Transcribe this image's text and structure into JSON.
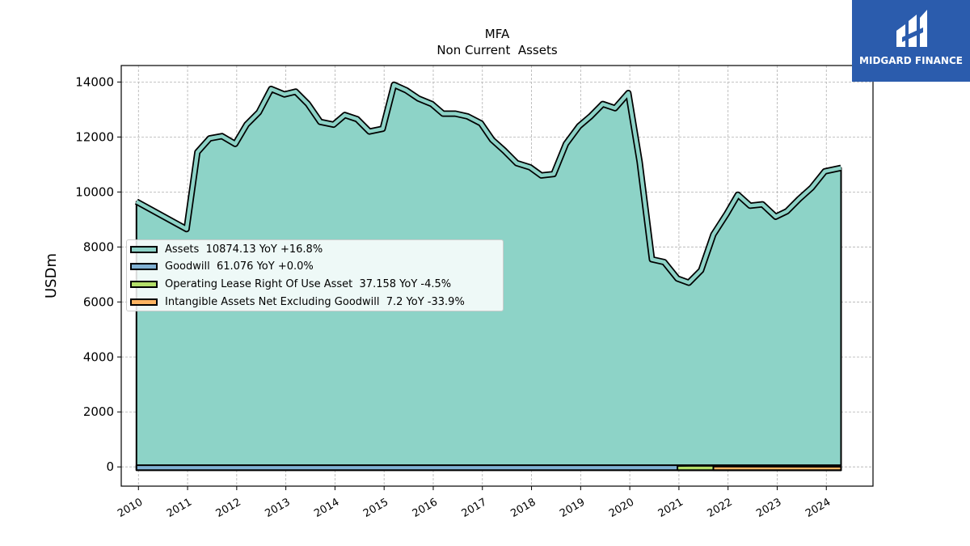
{
  "chart_data": {
    "type": "area",
    "title": "MFA",
    "subtitle": "Non Current  Assets",
    "ylabel": "USDm",
    "xlabel": "",
    "xlim": [
      2009.65,
      2024.95
    ],
    "ylim": [
      -700,
      14600
    ],
    "yticks": [
      0,
      2000,
      4000,
      6000,
      8000,
      10000,
      12000,
      14000
    ],
    "xticks": [
      "2010",
      "2011",
      "2012",
      "2013",
      "2014",
      "2015",
      "2016",
      "2017",
      "2018",
      "2019",
      "2020",
      "2021",
      "2022",
      "2023",
      "2024"
    ],
    "grid": true,
    "legend_position": "center-left",
    "series": [
      {
        "name": "Assets",
        "legend_label": "Assets  10874.13 YoY +16.8%",
        "color": "#8dd3c7",
        "x": [
          2009.96,
          2010.98,
          2011.2,
          2011.45,
          2011.7,
          2011.97,
          2012.2,
          2012.45,
          2012.7,
          2012.97,
          2013.2,
          2013.45,
          2013.7,
          2013.97,
          2014.2,
          2014.45,
          2014.7,
          2014.97,
          2015.2,
          2015.45,
          2015.7,
          2015.97,
          2016.2,
          2016.45,
          2016.7,
          2016.97,
          2017.2,
          2017.45,
          2017.7,
          2017.97,
          2018.2,
          2018.45,
          2018.7,
          2018.97,
          2019.2,
          2019.45,
          2019.7,
          2019.97,
          2020.2,
          2020.45,
          2020.7,
          2020.97,
          2021.2,
          2021.45,
          2021.7,
          2021.97,
          2022.2,
          2022.45,
          2022.7,
          2022.97,
          2023.2,
          2023.45,
          2023.7,
          2023.97,
          2024.3
        ],
        "values": [
          9650,
          8650,
          11450,
          11950,
          12030,
          11750,
          12450,
          12900,
          13750,
          13550,
          13650,
          13200,
          12550,
          12450,
          12800,
          12650,
          12200,
          12300,
          13900,
          13700,
          13400,
          13200,
          12850,
          12850,
          12750,
          12500,
          11900,
          11500,
          11050,
          10900,
          10600,
          10650,
          11750,
          12400,
          12750,
          13200,
          13050,
          13600,
          11100,
          7550,
          7450,
          6850,
          6700,
          7150,
          8450,
          9200,
          9900,
          9500,
          9550,
          9100,
          9300,
          9750,
          10150,
          10750,
          10874
        ]
      },
      {
        "name": "Goodwill",
        "legend_label": "Goodwill  61.076 YoY +0.0%",
        "color": "#80b1d3",
        "x": [
          2009.96,
          2019.7,
          2020.97,
          2024.3
        ],
        "values": [
          61,
          61,
          61,
          61
        ]
      },
      {
        "name": "Operating Lease Right Of Use Asset",
        "legend_label": "Operating Lease Right Of Use Asset  37.158 YoY -4.5%",
        "color": "#b3de69",
        "x": [
          2020.97,
          2021.2,
          2021.45,
          2021.7,
          2024.3
        ],
        "values": [
          37,
          38,
          39,
          38,
          37
        ]
      },
      {
        "name": "Intangible Assets Net Excluding Goodwill",
        "legend_label": "Intangible Assets Net Excluding Goodwill  7.2 YoY -33.9%",
        "color": "#fdb462",
        "x": [
          2021.7,
          2024.3
        ],
        "values": [
          11,
          7.2
        ]
      }
    ]
  },
  "logo": {
    "text": "MIDGARD FINANCE",
    "color": "#2b5cad"
  }
}
